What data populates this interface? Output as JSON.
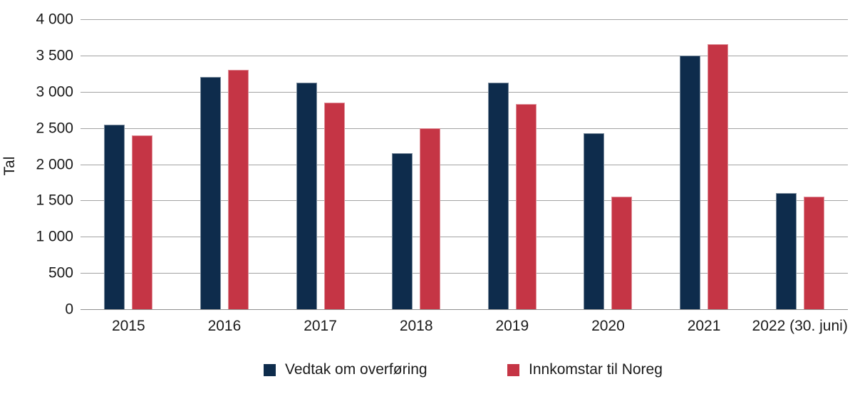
{
  "chart_data": {
    "type": "bar",
    "title": "",
    "ylabel": "Tal",
    "xlabel": "",
    "ylim": [
      0,
      4000
    ],
    "ytick_step": 500,
    "ytick_labels": [
      "0",
      "500",
      "1 000",
      "1 500",
      "2 000",
      "2 500",
      "3 000",
      "3 500",
      "4 000"
    ],
    "categories": [
      "2015",
      "2016",
      "2017",
      "2018",
      "2019",
      "2020",
      "2021",
      "2022 (30. juni)"
    ],
    "series": [
      {
        "name": "Vedtak om overføring",
        "color": "#0e2c4c",
        "values": [
          2550,
          3200,
          3130,
          2150,
          3130,
          2430,
          3500,
          1600
        ]
      },
      {
        "name": "Innkomstar til Noreg",
        "color": "#c53545",
        "values": [
          2400,
          3300,
          2850,
          2500,
          2830,
          1550,
          3660,
          1550
        ]
      }
    ],
    "grid": true,
    "grid_color": "#a3a3a3",
    "axis_color": "#8f8f8f",
    "text_color": "#1a1a1a",
    "legend_position": "bottom"
  }
}
